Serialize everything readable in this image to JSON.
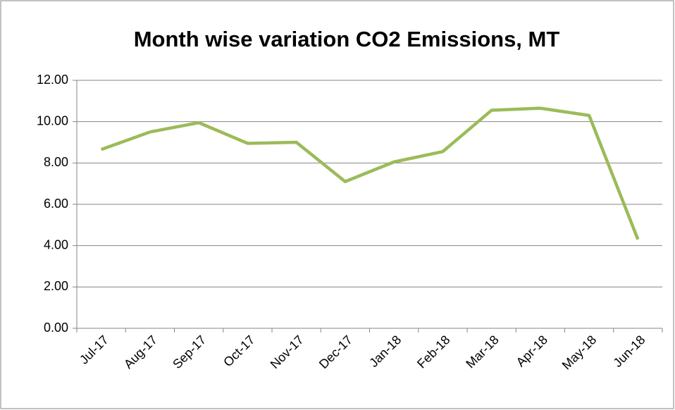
{
  "chart_data": {
    "type": "line",
    "title": "Month wise variation CO2 Emissions, MT",
    "categories": [
      "Jul-17",
      "Aug-17",
      "Sep-17",
      "Oct-17",
      "Nov-17",
      "Dec-17",
      "Jan-18",
      "Feb-18",
      "Mar-18",
      "Apr-18",
      "May-18",
      "Jun-18"
    ],
    "values": [
      8.65,
      9.5,
      9.95,
      8.95,
      9.0,
      7.1,
      8.05,
      8.55,
      10.55,
      10.65,
      10.3,
      4.3
    ],
    "color": "#9bbb59",
    "ylim": [
      0,
      12
    ],
    "yticks": [
      {
        "value": 0,
        "label": "0.00"
      },
      {
        "value": 2,
        "label": "2.00"
      },
      {
        "value": 4,
        "label": "4.00"
      },
      {
        "value": 6,
        "label": "6.00"
      },
      {
        "value": 8,
        "label": "8.00"
      },
      {
        "value": 10,
        "label": "10.00"
      },
      {
        "value": 12,
        "label": "12.00"
      }
    ],
    "grid": true
  }
}
